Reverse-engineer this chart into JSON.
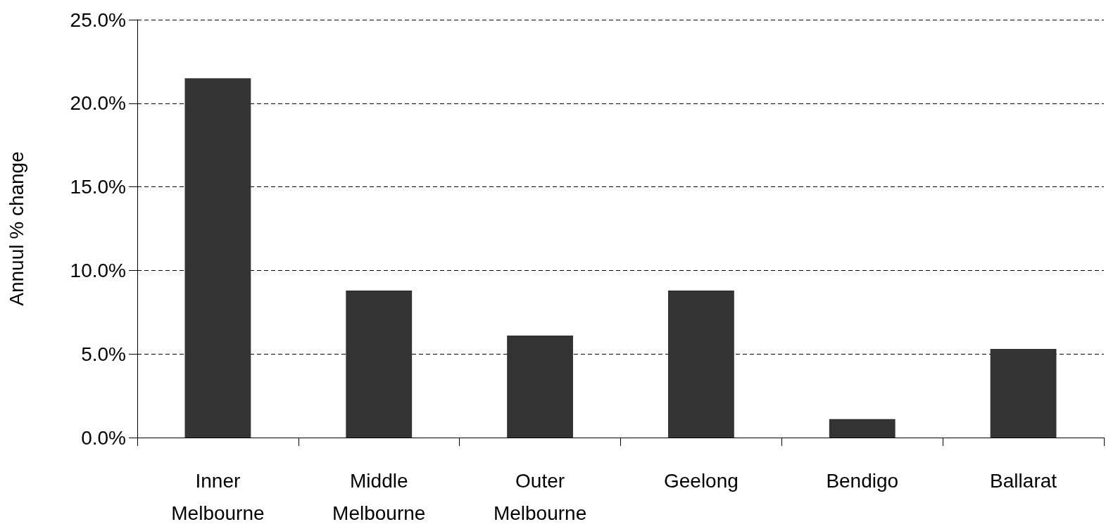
{
  "chart_data": {
    "type": "bar",
    "ylabel": "Annuul % change",
    "categories": [
      "Inner\nMelbourne",
      "Middle\nMelbourne",
      "Outer\nMelbourne",
      "Geelong",
      "Bendigo",
      "Ballarat"
    ],
    "values": [
      21.5,
      8.8,
      6.1,
      8.8,
      1.1,
      5.3
    ],
    "color": "#333333",
    "ylim": [
      0,
      25
    ],
    "yticks": [
      {
        "value": 0,
        "label": "0.0%"
      },
      {
        "value": 5,
        "label": "5.0%"
      },
      {
        "value": 10,
        "label": "10.0%"
      },
      {
        "value": 15,
        "label": "15.0%"
      },
      {
        "value": 20,
        "label": "20.0%"
      },
      {
        "value": 25,
        "label": "25.0%"
      }
    ],
    "grid": "y"
  }
}
